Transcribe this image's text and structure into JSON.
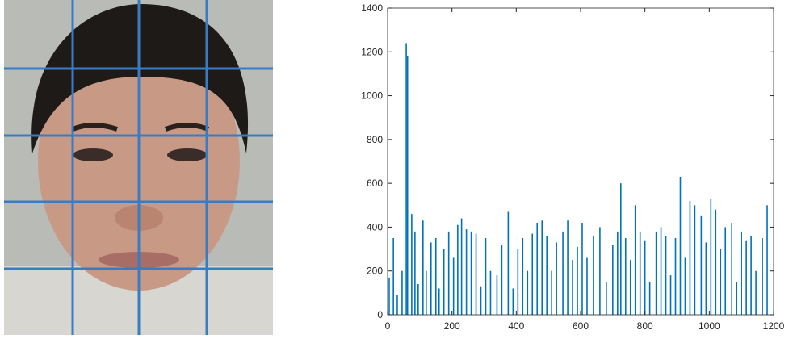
{
  "chart_data": {
    "type": "bar",
    "color": "#0072bd",
    "x": [
      5,
      18,
      30,
      45,
      58,
      62,
      75,
      85,
      95,
      110,
      120,
      135,
      150,
      160,
      175,
      190,
      205,
      218,
      230,
      245,
      260,
      275,
      290,
      305,
      320,
      340,
      355,
      375,
      390,
      405,
      420,
      435,
      450,
      465,
      480,
      495,
      510,
      525,
      545,
      560,
      575,
      590,
      605,
      620,
      640,
      660,
      680,
      700,
      715,
      725,
      740,
      755,
      770,
      785,
      800,
      815,
      835,
      850,
      865,
      880,
      895,
      910,
      925,
      940,
      955,
      975,
      990,
      1005,
      1020,
      1035,
      1050,
      1070,
      1085,
      1100,
      1115,
      1130,
      1145,
      1165,
      1180
    ],
    "values": [
      170,
      350,
      90,
      200,
      1240,
      1180,
      460,
      380,
      140,
      430,
      200,
      330,
      350,
      120,
      300,
      380,
      260,
      410,
      440,
      390,
      380,
      370,
      130,
      350,
      200,
      180,
      320,
      470,
      120,
      300,
      350,
      200,
      370,
      420,
      430,
      360,
      200,
      330,
      380,
      430,
      250,
      310,
      420,
      260,
      360,
      400,
      150,
      320,
      380,
      600,
      350,
      250,
      500,
      380,
      340,
      150,
      380,
      400,
      360,
      180,
      350,
      630,
      260,
      520,
      500,
      450,
      330,
      530,
      480,
      300,
      400,
      420,
      150,
      380,
      340,
      360,
      200,
      350,
      500
    ],
    "xlim": [
      0,
      1200
    ],
    "xticks": [
      0,
      200,
      400,
      600,
      800,
      1000,
      1200
    ],
    "ylim": [
      0,
      1400
    ],
    "yticks": [
      0,
      200,
      400,
      600,
      800,
      1000,
      1200,
      1400
    ]
  }
}
